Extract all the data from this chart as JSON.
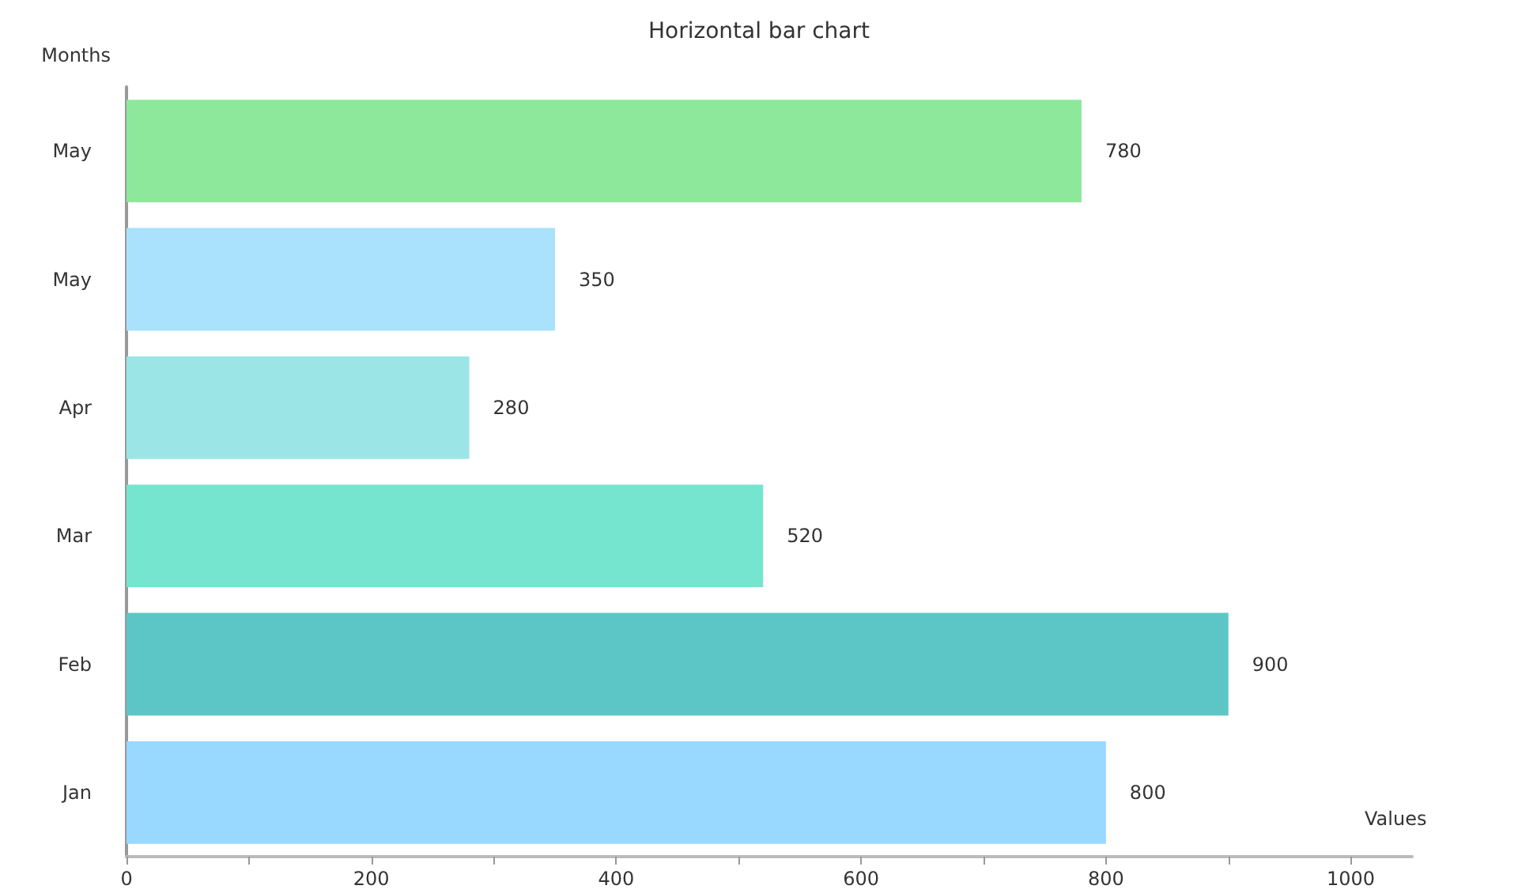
{
  "chart_data": {
    "type": "bar",
    "orientation": "horizontal",
    "title": "Horizontal bar chart",
    "xlabel": "Values",
    "ylabel": "Months",
    "categories": [
      "May",
      "May",
      "Apr",
      "Mar",
      "Feb",
      "Jan"
    ],
    "values": [
      780,
      350,
      280,
      520,
      900,
      800
    ],
    "colors": [
      "#8ee89c",
      "#aae1fc",
      "#9be5e6",
      "#76e5cf",
      "#5cc6c6",
      "#99d8ff"
    ],
    "xlim": [
      0,
      1050
    ],
    "xticks": [
      0,
      {
        "value": 100,
        "label": null
      },
      200,
      {
        "value": 300,
        "label": null
      },
      400,
      {
        "value": 500,
        "label": null
      },
      600,
      {
        "value": 700,
        "label": null
      },
      800,
      {
        "value": 900,
        "label": null
      },
      1000
    ],
    "data_labels": true
  }
}
